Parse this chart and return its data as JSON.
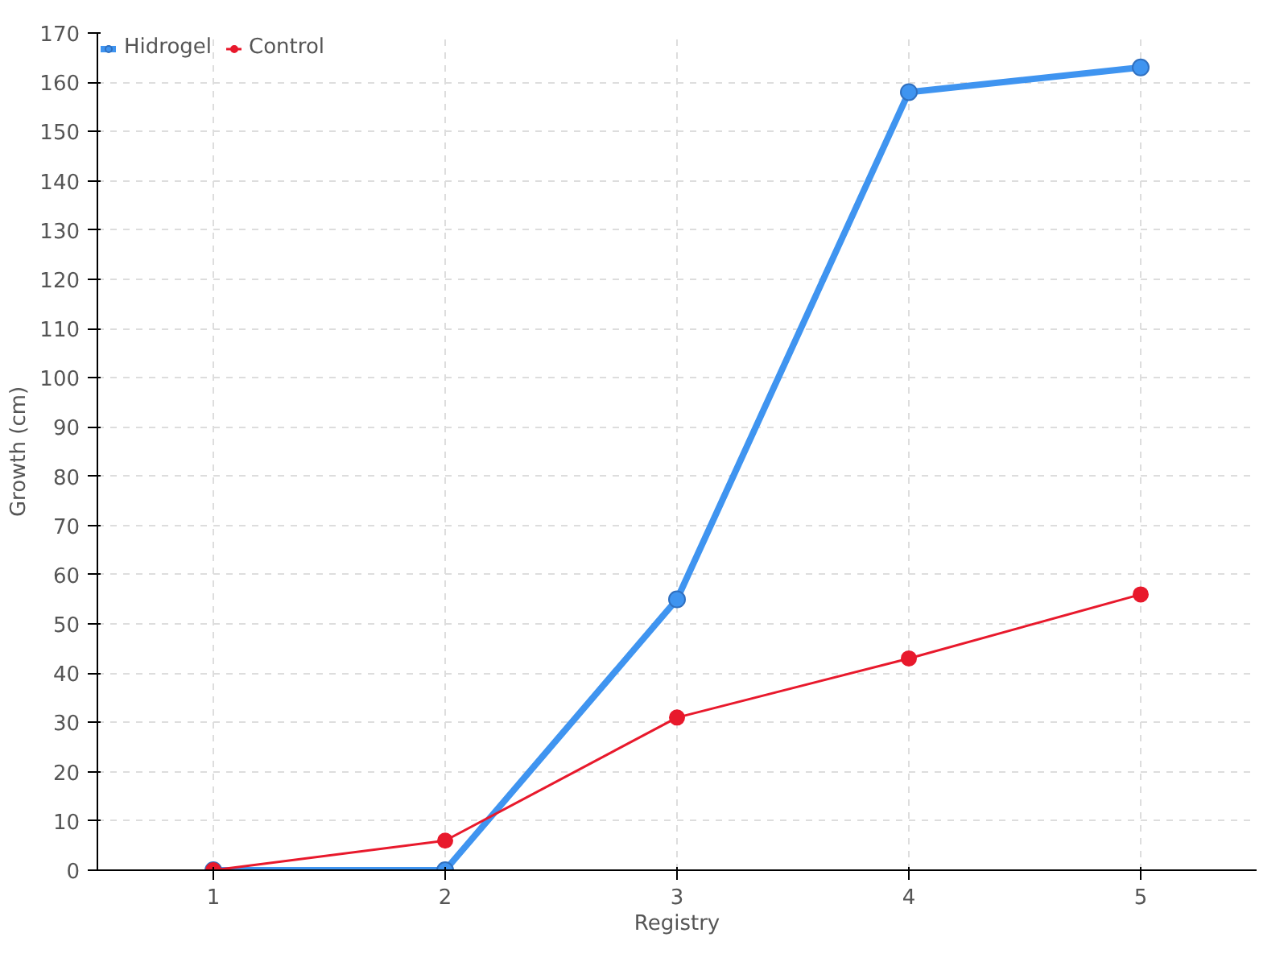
{
  "chart_data": {
    "type": "line",
    "xlabel": "Registry",
    "ylabel": "Growth (cm)",
    "x": [
      1,
      2,
      3,
      4,
      5
    ],
    "xlim": [
      0.5,
      5.5
    ],
    "xticks": [
      1,
      2,
      3,
      4,
      5
    ],
    "ylim": [
      0,
      170
    ],
    "yticks": [
      0,
      10,
      20,
      30,
      40,
      50,
      60,
      70,
      80,
      90,
      100,
      110,
      120,
      130,
      140,
      150,
      160,
      170
    ],
    "grid": true,
    "legend": "top left",
    "marker": "circle",
    "series": [
      {
        "name": "Hidrogel",
        "color": "#3f94f0",
        "values": [
          0,
          0,
          55,
          158,
          163
        ]
      },
      {
        "name": "Control",
        "color": "#e8192c",
        "values": [
          0,
          6,
          31,
          43,
          56
        ]
      }
    ]
  }
}
